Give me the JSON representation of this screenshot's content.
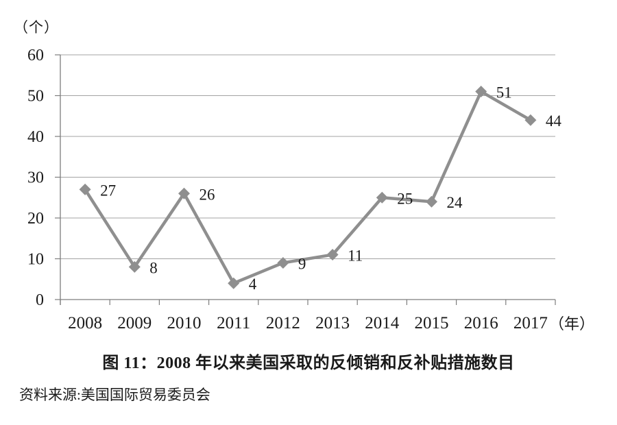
{
  "chart_data": {
    "type": "line",
    "title": "图 11：2008 年以来美国采取的反倾销和反补贴措施数目",
    "source": "资料来源:美国国际贸易委员会",
    "y_unit_label": "（个）",
    "x_unit_label": "（年）",
    "categories": [
      "2008",
      "2009",
      "2010",
      "2011",
      "2012",
      "2013",
      "2014",
      "2015",
      "2016",
      "2017"
    ],
    "values": [
      27,
      8,
      26,
      4,
      9,
      11,
      25,
      24,
      51,
      44
    ],
    "ylim": [
      0,
      60
    ],
    "y_ticks": [
      0,
      10,
      20,
      30,
      40,
      50,
      60
    ],
    "grid": true,
    "legend": false,
    "marker": "diamond",
    "data_labels": true,
    "colors": {
      "series": "#8f8f8f",
      "grid": "#a3a3a3",
      "axis": "#7d7d7d",
      "text": "#1a1a1a"
    }
  }
}
